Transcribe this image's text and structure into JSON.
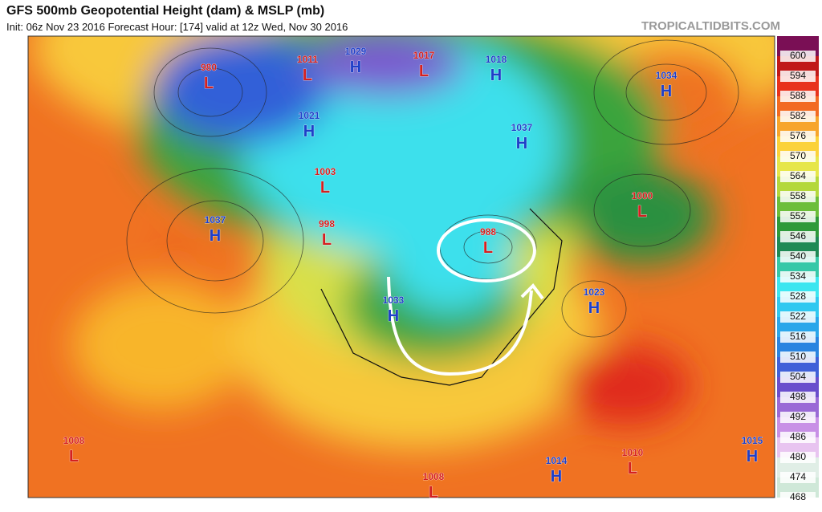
{
  "header": {
    "title": "GFS 500mb Geopotential Height (dam) & MSLP (mb)",
    "init": "Init: 06z Nov 23 2016   Forecast Hour: [174]   valid at 12z Wed, Nov 30 2016",
    "credit": "TROPICALTIDBITS.COM"
  },
  "colorbar": {
    "labels": [
      600,
      594,
      588,
      582,
      576,
      570,
      564,
      558,
      552,
      546,
      540,
      534,
      528,
      522,
      516,
      510,
      504,
      498,
      492,
      486,
      480,
      474,
      468
    ],
    "colors": [
      "#7a0f55",
      "#c01818",
      "#e8321c",
      "#f26a22",
      "#f7a52c",
      "#fbd23a",
      "#e6e64a",
      "#b4d83c",
      "#6cbe3a",
      "#2e9a3a",
      "#1f8a55",
      "#36c8a8",
      "#3ce6f0",
      "#30c8f0",
      "#2aa6ea",
      "#2a84e0",
      "#4060d8",
      "#6a4ecc",
      "#9a6ad6",
      "#c890e6",
      "#e8c4f0",
      "#e0eee6",
      "#cfe8d8"
    ]
  },
  "centers": [
    {
      "value": "980",
      "kind": "L"
    },
    {
      "value": "1011",
      "kind": "L"
    },
    {
      "value": "1029",
      "kind": "H"
    },
    {
      "value": "1017",
      "kind": "L"
    },
    {
      "value": "1018",
      "kind": "H"
    },
    {
      "value": "1034",
      "kind": "H"
    },
    {
      "value": "1021",
      "kind": "H"
    },
    {
      "value": "1037",
      "kind": "H"
    },
    {
      "value": "1003",
      "kind": "L"
    },
    {
      "value": "1000",
      "kind": "L"
    },
    {
      "value": "1037",
      "kind": "H"
    },
    {
      "value": "998",
      "kind": "L"
    },
    {
      "value": "988",
      "kind": "L"
    },
    {
      "value": "1033",
      "kind": "H"
    },
    {
      "value": "1023",
      "kind": "H"
    },
    {
      "value": "1008",
      "kind": "L"
    },
    {
      "value": "1014",
      "kind": "H"
    },
    {
      "value": "1010",
      "kind": "L"
    },
    {
      "value": "1015",
      "kind": "H"
    },
    {
      "value": "1008",
      "kind": "L"
    }
  ]
}
